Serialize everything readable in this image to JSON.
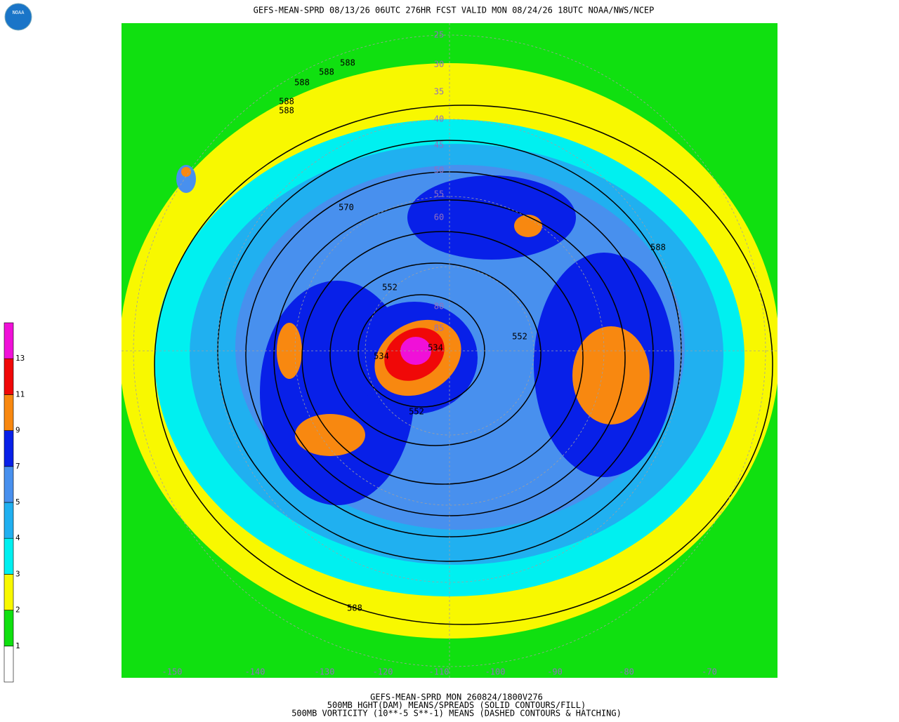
{
  "header": {
    "title": "GEFS-MEAN-SPRD 08/13/26 06UTC 276HR FCST VALID MON 08/24/26 18UTC NOAA/NWS/NCEP",
    "logo": "NOAA"
  },
  "colorbar": {
    "levels": [
      1,
      2,
      3,
      4,
      5,
      7,
      9,
      11,
      13
    ],
    "colors": [
      "#ffffff",
      "#10e010",
      "#f8f800",
      "#00f0f0",
      "#20b0f0",
      "#4890ee",
      "#0820e8",
      "#f88810",
      "#f00808",
      "#f010d8"
    ]
  },
  "map": {
    "contour_labels": [
      "588",
      "588",
      "588",
      "588",
      "588",
      "588",
      "588",
      "570",
      "552",
      "552",
      "552",
      "534",
      "534"
    ],
    "latitude_labels": [
      "25",
      "30",
      "35",
      "40",
      "45",
      "50",
      "55",
      "60",
      "80",
      "85"
    ],
    "longitude_labels": [
      "-150",
      "-140",
      "-130",
      "-120",
      "-110",
      "-100",
      "-90",
      "-80",
      "-70"
    ]
  },
  "footer": {
    "lines": [
      "GEFS-MEAN-SPRD MON 260824/1800V276",
      "500MB HGHT(DAM) MEANS/SPREADS (SOLID CONTOURS/FILL)",
      "500MB VORTICITY (10**-5 S**-1) MEANS (DASHED CONTOURS & HATCHING)"
    ]
  }
}
